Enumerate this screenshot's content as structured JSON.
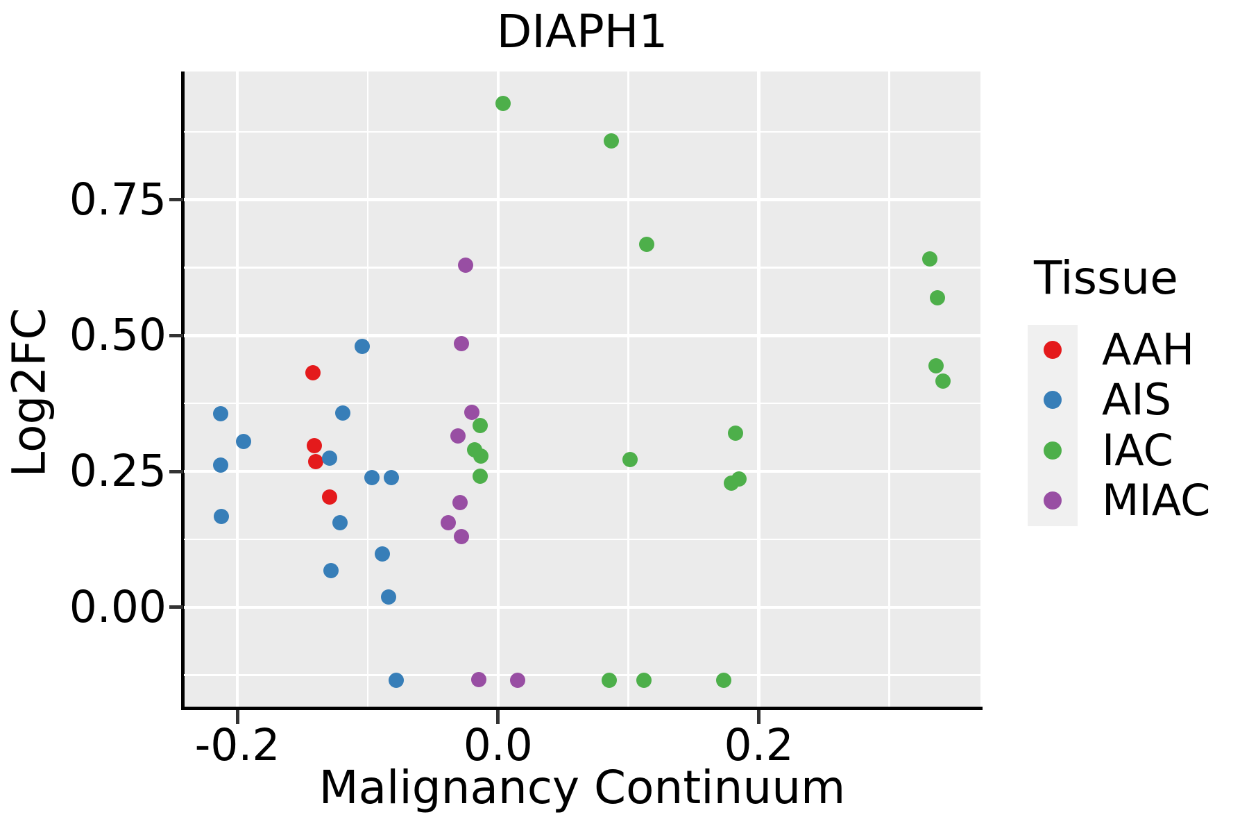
{
  "title": "DIAPH1",
  "x_axis": {
    "label": "Malignancy Continuum",
    "tick_values": [
      -0.2,
      0.0,
      0.2
    ],
    "tick_labels": [
      "-0.2",
      "0.0",
      "0.2"
    ],
    "minor_gridlines": [
      -0.1,
      0.1,
      0.3
    ],
    "range": [
      -0.241,
      0.37
    ]
  },
  "y_axis": {
    "label": "Log2FC",
    "tick_values": [
      0.0,
      0.25,
      0.5,
      0.75
    ],
    "tick_labels": [
      "0.00",
      "0.25",
      "0.50",
      "0.75"
    ],
    "minor_gridlines": [
      -0.125,
      0.125,
      0.375,
      0.625,
      0.875
    ],
    "range": [
      -0.183,
      0.986
    ]
  },
  "legend": {
    "title": "Tissue",
    "items": [
      {
        "label": "AAH",
        "color": "#E41A1C"
      },
      {
        "label": "AIS",
        "color": "#377EB8"
      },
      {
        "label": "IAC",
        "color": "#4DAF4A"
      },
      {
        "label": "MIAC",
        "color": "#984EA3"
      }
    ]
  },
  "style_colors": {
    "panel_background": "#EBEBEB",
    "gridline": "#FFFFFF",
    "axis_line": "#000000",
    "tick_mark": "#333333",
    "legend_key_background": "#F0F0F0"
  },
  "chart_data": {
    "type": "scatter",
    "title": "DIAPH1",
    "xlabel": "Malignancy Continuum",
    "ylabel": "Log2FC",
    "xlim": [
      -0.241,
      0.37
    ],
    "ylim": [
      -0.183,
      0.986
    ],
    "grid": true,
    "legend_position": "right",
    "series": [
      {
        "name": "AAH",
        "color": "#E41A1C",
        "points": [
          [
            -0.142,
            0.432
          ],
          [
            -0.141,
            0.298
          ],
          [
            -0.14,
            0.268
          ],
          [
            -0.129,
            0.203
          ]
        ]
      },
      {
        "name": "AIS",
        "color": "#377EB8",
        "points": [
          [
            -0.213,
            0.356
          ],
          [
            -0.195,
            0.305
          ],
          [
            -0.213,
            0.261
          ],
          [
            -0.212,
            0.167
          ],
          [
            -0.104,
            0.48
          ],
          [
            -0.119,
            0.358
          ],
          [
            -0.129,
            0.274
          ],
          [
            -0.097,
            0.238
          ],
          [
            -0.082,
            0.238
          ],
          [
            -0.121,
            0.156
          ],
          [
            -0.089,
            0.098
          ],
          [
            -0.128,
            0.068
          ],
          [
            -0.084,
            0.019
          ],
          [
            -0.078,
            -0.134
          ]
        ]
      },
      {
        "name": "IAC",
        "color": "#4DAF4A",
        "points": [
          [
            0.004,
            0.927
          ],
          [
            0.087,
            0.858
          ],
          [
            0.114,
            0.668
          ],
          [
            0.331,
            0.641
          ],
          [
            0.337,
            0.57
          ],
          [
            0.336,
            0.444
          ],
          [
            0.341,
            0.416
          ],
          [
            -0.014,
            0.334
          ],
          [
            -0.018,
            0.29
          ],
          [
            -0.013,
            0.278
          ],
          [
            -0.014,
            0.241
          ],
          [
            0.101,
            0.272
          ],
          [
            0.182,
            0.321
          ],
          [
            0.179,
            0.228
          ],
          [
            0.185,
            0.236
          ],
          [
            0.085,
            -0.134
          ],
          [
            0.112,
            -0.134
          ],
          [
            0.173,
            -0.134
          ]
        ]
      },
      {
        "name": "MIAC",
        "color": "#984EA3",
        "points": [
          [
            -0.025,
            0.63
          ],
          [
            -0.028,
            0.485
          ],
          [
            -0.02,
            0.359
          ],
          [
            -0.031,
            0.315
          ],
          [
            -0.029,
            0.193
          ],
          [
            -0.038,
            0.155
          ],
          [
            -0.028,
            0.13
          ],
          [
            -0.015,
            -0.133
          ],
          [
            0.015,
            -0.134
          ]
        ]
      }
    ]
  }
}
